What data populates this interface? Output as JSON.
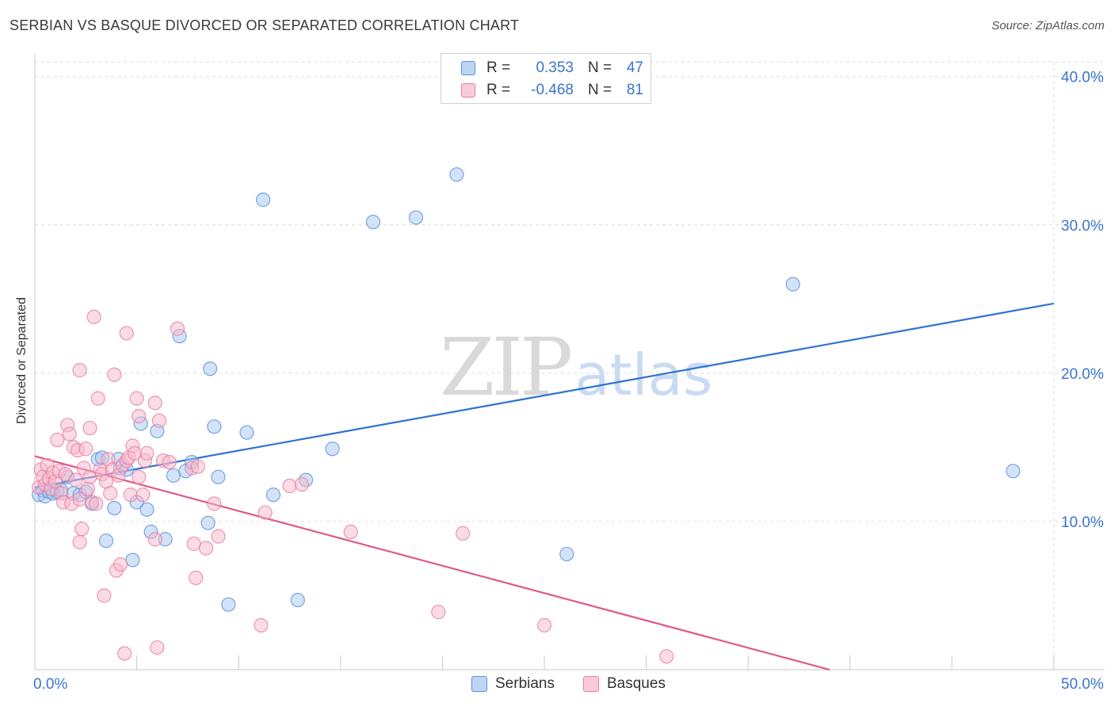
{
  "chart_data": {
    "type": "scatter",
    "title": "SERBIAN VS BASQUE DIVORCED OR SEPARATED CORRELATION CHART",
    "source": "Source: ZipAtlas.com",
    "xlabel": "",
    "ylabel": "Divorced or Separated",
    "xlim": [
      0,
      50
    ],
    "ylim": [
      0,
      41
    ],
    "x_tick_labels": [
      "0.0%",
      "50.0%"
    ],
    "y_ticks": [
      10,
      20,
      30,
      40
    ],
    "y_tick_labels": [
      "10.0%",
      "20.0%",
      "30.0%",
      "40.0%"
    ],
    "grid": true,
    "legend_position": "top-center",
    "watermark": {
      "zip": "ZIP",
      "atlas": "atlas"
    },
    "colors": {
      "serbians_fill": "#a8c8f0",
      "serbians_stroke": "#5b8fd9",
      "serbians_line": "#2e72d2",
      "basques_fill": "#f7b7cb",
      "basques_stroke": "#e77fa0",
      "basques_line": "#e0588a",
      "axis_label": "#3b74cc"
    },
    "legend": {
      "rows": [
        {
          "series": "serbians",
          "r_label": "R =",
          "r_value": "0.353",
          "n_label": "N =",
          "n_value": "47"
        },
        {
          "series": "basques",
          "r_label": "R =",
          "r_value": "-0.468",
          "n_label": "N =",
          "n_value": "81"
        }
      ]
    },
    "series": [
      {
        "name": "Serbians",
        "key": "serbians",
        "trend": {
          "x": [
            0,
            50
          ],
          "y": [
            12.3,
            24.7
          ]
        },
        "points": [
          [
            0.2,
            11.8
          ],
          [
            0.4,
            12.1
          ],
          [
            0.5,
            11.7
          ],
          [
            0.7,
            12.0
          ],
          [
            0.9,
            11.9
          ],
          [
            1.1,
            12.0
          ],
          [
            1.3,
            12.1
          ],
          [
            1.6,
            13.0
          ],
          [
            1.9,
            11.9
          ],
          [
            2.2,
            11.8
          ],
          [
            2.5,
            12.0
          ],
          [
            2.8,
            11.2
          ],
          [
            3.1,
            14.2
          ],
          [
            3.3,
            14.3
          ],
          [
            3.5,
            8.7
          ],
          [
            3.9,
            10.9
          ],
          [
            4.1,
            14.2
          ],
          [
            4.2,
            13.6
          ],
          [
            4.5,
            13.5
          ],
          [
            4.8,
            7.4
          ],
          [
            5.0,
            11.3
          ],
          [
            5.2,
            16.6
          ],
          [
            5.5,
            10.8
          ],
          [
            5.7,
            9.3
          ],
          [
            6.0,
            16.1
          ],
          [
            6.4,
            8.8
          ],
          [
            6.8,
            13.1
          ],
          [
            7.1,
            22.5
          ],
          [
            7.4,
            13.4
          ],
          [
            7.7,
            14.0
          ],
          [
            8.5,
            9.9
          ],
          [
            8.6,
            20.3
          ],
          [
            8.8,
            16.4
          ],
          [
            9.0,
            13.0
          ],
          [
            9.5,
            4.4
          ],
          [
            10.4,
            16.0
          ],
          [
            11.2,
            31.7
          ],
          [
            11.7,
            11.8
          ],
          [
            12.9,
            4.7
          ],
          [
            13.3,
            12.8
          ],
          [
            14.6,
            14.9
          ],
          [
            16.6,
            30.2
          ],
          [
            18.7,
            30.5
          ],
          [
            20.7,
            33.4
          ],
          [
            26.1,
            7.8
          ],
          [
            37.2,
            26.0
          ],
          [
            48.0,
            13.4
          ]
        ]
      },
      {
        "name": "Basques",
        "key": "basques",
        "trend": {
          "x": [
            0,
            39
          ],
          "y": [
            14.4,
            0
          ]
        },
        "points": [
          [
            0.2,
            12.3
          ],
          [
            0.3,
            13.5
          ],
          [
            0.4,
            13.0
          ],
          [
            0.5,
            12.5
          ],
          [
            0.6,
            13.8
          ],
          [
            0.7,
            12.9
          ],
          [
            0.8,
            12.2
          ],
          [
            0.9,
            13.3
          ],
          [
            1.0,
            12.7
          ],
          [
            1.1,
            15.5
          ],
          [
            1.2,
            13.4
          ],
          [
            1.3,
            11.9
          ],
          [
            1.4,
            11.3
          ],
          [
            1.5,
            13.2
          ],
          [
            1.6,
            16.5
          ],
          [
            1.7,
            15.9
          ],
          [
            1.8,
            11.2
          ],
          [
            1.9,
            15.0
          ],
          [
            2.0,
            12.8
          ],
          [
            2.1,
            14.8
          ],
          [
            2.2,
            11.5
          ],
          [
            2.2,
            8.6
          ],
          [
            2.2,
            20.2
          ],
          [
            2.3,
            9.5
          ],
          [
            2.4,
            13.6
          ],
          [
            2.5,
            14.9
          ],
          [
            2.6,
            12.2
          ],
          [
            2.7,
            13.0
          ],
          [
            2.7,
            16.3
          ],
          [
            2.8,
            11.3
          ],
          [
            2.9,
            23.8
          ],
          [
            3.0,
            11.2
          ],
          [
            3.1,
            18.3
          ],
          [
            3.2,
            13.5
          ],
          [
            3.3,
            13.2
          ],
          [
            3.4,
            5.0
          ],
          [
            3.5,
            12.7
          ],
          [
            3.6,
            14.2
          ],
          [
            3.7,
            11.9
          ],
          [
            3.8,
            13.5
          ],
          [
            3.9,
            19.9
          ],
          [
            4.0,
            6.7
          ],
          [
            4.1,
            13.1
          ],
          [
            4.2,
            7.1
          ],
          [
            4.3,
            13.8
          ],
          [
            4.4,
            1.1
          ],
          [
            4.5,
            14.1
          ],
          [
            4.5,
            22.7
          ],
          [
            4.6,
            14.3
          ],
          [
            4.7,
            11.8
          ],
          [
            4.8,
            15.1
          ],
          [
            4.9,
            14.6
          ],
          [
            5.0,
            18.3
          ],
          [
            5.1,
            13.0
          ],
          [
            5.1,
            17.1
          ],
          [
            5.3,
            11.8
          ],
          [
            5.4,
            14.1
          ],
          [
            5.5,
            14.6
          ],
          [
            5.9,
            8.8
          ],
          [
            5.9,
            18.0
          ],
          [
            6.0,
            1.5
          ],
          [
            6.1,
            16.8
          ],
          [
            6.3,
            14.1
          ],
          [
            6.6,
            14.0
          ],
          [
            7.0,
            23.0
          ],
          [
            7.7,
            13.6
          ],
          [
            7.8,
            8.5
          ],
          [
            7.9,
            6.2
          ],
          [
            8.0,
            13.7
          ],
          [
            8.4,
            8.2
          ],
          [
            8.8,
            11.2
          ],
          [
            9.0,
            9.0
          ],
          [
            11.1,
            3.0
          ],
          [
            11.3,
            10.6
          ],
          [
            12.5,
            12.4
          ],
          [
            13.1,
            12.5
          ],
          [
            15.5,
            9.3
          ],
          [
            19.8,
            3.9
          ],
          [
            21.0,
            9.2
          ],
          [
            25.0,
            3.0
          ],
          [
            31.0,
            0.9
          ]
        ]
      }
    ]
  }
}
